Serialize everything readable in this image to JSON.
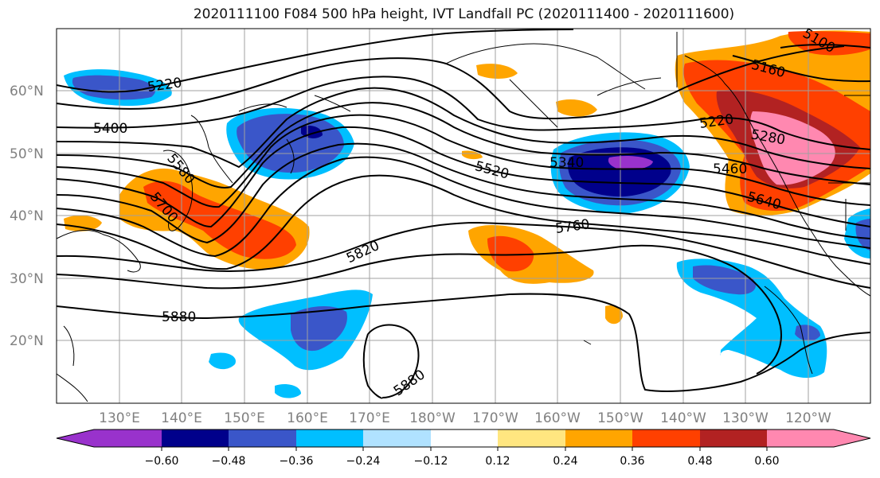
{
  "title": "2020111100 F084 500 hPa height, IVT Landfall PC (2020111400 - 2020111600)",
  "colors": {
    "neg_060": "#9932cc",
    "neg_048": "#00008b",
    "neg_036": "#3a56c9",
    "neg_024": "#00bfff",
    "neg_012": "#b0e2ff",
    "zero": "#ffffff",
    "pos_012": "#ffe680",
    "pos_024": "#ffa500",
    "pos_036": "#ff4000",
    "pos_048": "#b22222",
    "pos_060": "#ff88b0",
    "contour": "#000000",
    "grid": "#a0a0a0",
    "axis_label": "#808080"
  },
  "map": {
    "projection": "PlateCarree",
    "lon_range": [
      120,
      250
    ],
    "lat_range": [
      10,
      70
    ],
    "lat_labels": [
      "60°N",
      "50°N",
      "40°N",
      "30°N",
      "20°N"
    ],
    "lon_labels": [
      "130°E",
      "140°E",
      "150°E",
      "160°E",
      "170°E",
      "180°W",
      "170°W",
      "160°W",
      "150°W",
      "140°W",
      "130°W",
      "120°W"
    ],
    "contour_labels": [
      "5220",
      "5400",
      "5580",
      "5700",
      "5820",
      "5880",
      "5880",
      "5520",
      "5340",
      "5760",
      "5460",
      "5640",
      "5280",
      "5100",
      "5160",
      "5220"
    ]
  },
  "colorbar": {
    "ticks": [
      "−0.60",
      "−0.48",
      "−0.36",
      "−0.24",
      "−0.12",
      "0.12",
      "0.24",
      "0.36",
      "0.48",
      "0.60"
    ],
    "extend": "both"
  }
}
